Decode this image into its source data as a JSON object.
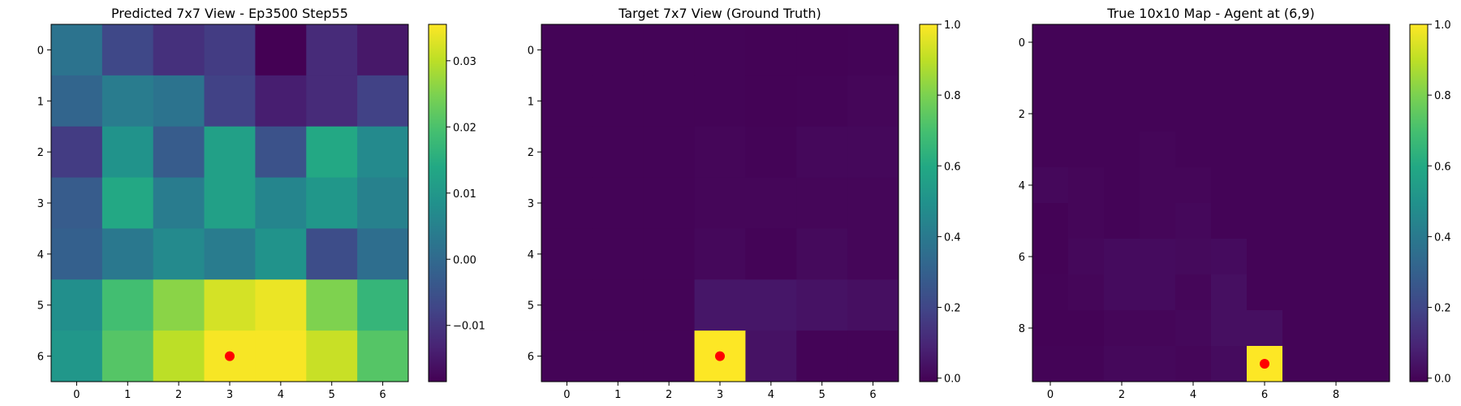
{
  "chart_data": [
    {
      "type": "heatmap",
      "title": "Predicted 7x7 View - Ep3500 Step55",
      "xticks": [
        0,
        1,
        2,
        3,
        4,
        5,
        6
      ],
      "yticks": [
        0,
        1,
        2,
        3,
        4,
        5,
        6
      ],
      "colorbar": {
        "min": -0.0185,
        "max": 0.0355,
        "ticks": [
          -0.01,
          0.0,
          0.01,
          0.02,
          0.03
        ],
        "tick_labels": [
          "−0.01",
          "0.00",
          "0.01",
          "0.02",
          "0.03"
        ]
      },
      "colormap": "viridis",
      "values": [
        [
          0.002,
          -0.007,
          -0.011,
          -0.009,
          -0.0185,
          -0.012,
          -0.015
        ],
        [
          -0.001,
          0.004,
          0.002,
          -0.008,
          -0.014,
          -0.012,
          -0.008
        ],
        [
          -0.009,
          0.009,
          -0.003,
          0.012,
          -0.005,
          0.014,
          0.007
        ],
        [
          -0.003,
          0.014,
          0.004,
          0.012,
          0.006,
          0.01,
          0.005
        ],
        [
          -0.002,
          0.003,
          0.007,
          0.004,
          0.009,
          -0.006,
          0.001
        ],
        [
          0.008,
          0.019,
          0.026,
          0.032,
          0.034,
          0.025,
          0.017
        ],
        [
          0.01,
          0.021,
          0.03,
          0.035,
          0.035,
          0.031,
          0.021
        ]
      ],
      "marker": {
        "x": 3,
        "y": 6,
        "color": "#ff0000"
      }
    },
    {
      "type": "heatmap",
      "title": "Target 7x7 View (Ground Truth)",
      "xticks": [
        0,
        1,
        2,
        3,
        4,
        5,
        6
      ],
      "yticks": [
        0,
        1,
        2,
        3,
        4,
        5,
        6
      ],
      "colorbar": {
        "min": -0.01,
        "max": 1.0,
        "ticks": [
          0.0,
          0.2,
          0.4,
          0.6,
          0.8,
          1.0
        ],
        "tick_labels": [
          "0.0",
          "0.2",
          "0.4",
          "0.6",
          "0.8",
          "1.0"
        ]
      },
      "colormap": "viridis",
      "values": [
        [
          0.0,
          0.0,
          0.0,
          0.0,
          -0.005,
          -0.003,
          0.0
        ],
        [
          0.0,
          0.0,
          0.0,
          0.0,
          -0.003,
          -0.002,
          0.005
        ],
        [
          0.0,
          0.0,
          0.0,
          0.005,
          0.0,
          0.01,
          0.01
        ],
        [
          0.0,
          0.0,
          0.0,
          0.005,
          0.005,
          0.005,
          0.005
        ],
        [
          0.0,
          0.0,
          0.0,
          0.01,
          0.0,
          0.015,
          0.005
        ],
        [
          0.0,
          0.0,
          0.0,
          0.05,
          0.05,
          0.04,
          0.03
        ],
        [
          0.0,
          0.0,
          0.0,
          1.0,
          0.04,
          0.0,
          0.0
        ]
      ],
      "marker": {
        "x": 3,
        "y": 6,
        "color": "#ff0000"
      }
    },
    {
      "type": "heatmap",
      "title": "True 10x10 Map - Agent at (6,9)",
      "xticks": [
        0,
        2,
        4,
        6,
        8
      ],
      "yticks": [
        0,
        2,
        4,
        6,
        8
      ],
      "colorbar": {
        "min": -0.01,
        "max": 1.0,
        "ticks": [
          0.0,
          0.2,
          0.4,
          0.6,
          0.8,
          1.0
        ],
        "tick_labels": [
          "0.0",
          "0.2",
          "0.4",
          "0.6",
          "0.8",
          "1.0"
        ]
      },
      "colormap": "viridis",
      "values": [
        [
          0.0,
          0.0,
          0.0,
          0.0,
          0.0,
          0.0,
          0.0,
          0.0,
          0.0,
          0.0
        ],
        [
          0.0,
          0.0,
          0.0,
          0.0,
          0.0,
          0.0,
          0.0,
          0.0,
          0.0,
          0.0
        ],
        [
          0.0,
          0.0,
          0.0,
          0.0,
          0.0,
          0.0,
          0.0,
          0.0,
          0.0,
          0.0
        ],
        [
          0.0,
          0.0,
          0.0,
          0.005,
          0.0,
          0.0,
          0.0,
          0.0,
          0.0,
          0.0
        ],
        [
          0.01,
          0.005,
          0.0,
          0.005,
          0.005,
          0.0,
          0.0,
          0.0,
          0.0,
          0.0
        ],
        [
          -0.005,
          0.005,
          0.0,
          0.005,
          0.01,
          0.0,
          0.0,
          0.0,
          0.0,
          0.0
        ],
        [
          -0.005,
          0.01,
          0.02,
          0.02,
          0.015,
          0.02,
          0.0,
          0.0,
          0.0,
          0.0
        ],
        [
          0.0,
          0.005,
          0.02,
          0.02,
          0.005,
          0.03,
          0.0,
          0.0,
          0.0,
          0.0
        ],
        [
          -0.005,
          -0.003,
          0.005,
          0.005,
          0.01,
          0.03,
          0.03,
          0.0,
          0.0,
          0.0
        ],
        [
          0.0,
          0.0,
          0.01,
          0.01,
          0.005,
          0.02,
          1.0,
          0.0,
          0.0,
          0.0
        ]
      ],
      "marker": {
        "x": 6,
        "y": 9,
        "color": "#ff0000"
      }
    }
  ]
}
